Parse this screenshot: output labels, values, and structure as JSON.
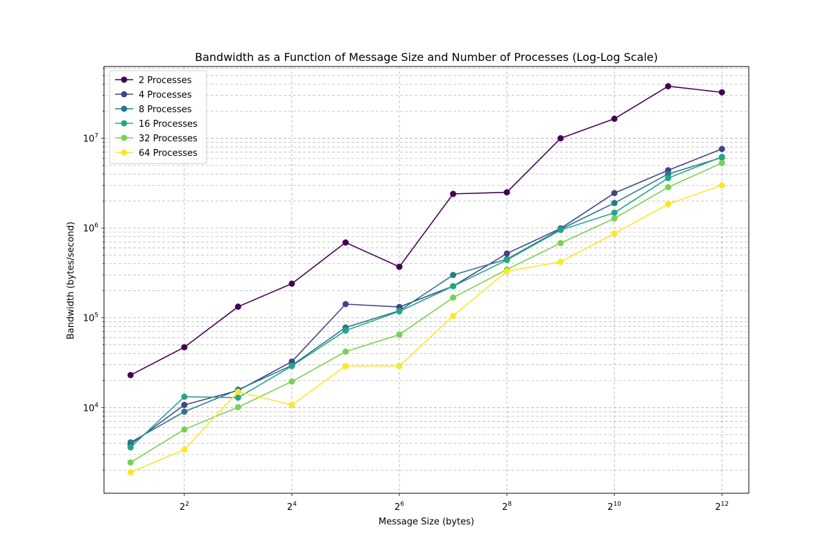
{
  "chart_data": {
    "type": "line",
    "title": "Bandwidth as a Function of Message Size and Number of Processes (Log-Log Scale)",
    "xlabel": "Message Size (bytes)",
    "ylabel": "Bandwidth (bytes/second)",
    "x_scale": "log2",
    "y_scale": "log10",
    "xlim": [
      1.42,
      5793
    ],
    "ylim": [
      1110,
      63000000
    ],
    "x_ticks": [
      {
        "base": "2",
        "exp": "2",
        "value": 4
      },
      {
        "base": "2",
        "exp": "4",
        "value": 16
      },
      {
        "base": "2",
        "exp": "6",
        "value": 64
      },
      {
        "base": "2",
        "exp": "8",
        "value": 256
      },
      {
        "base": "2",
        "exp": "10",
        "value": 1024
      },
      {
        "base": "2",
        "exp": "12",
        "value": 4096
      }
    ],
    "y_ticks": [
      {
        "base": "10",
        "exp": "4",
        "value": 10000
      },
      {
        "base": "10",
        "exp": "5",
        "value": 100000
      },
      {
        "base": "10",
        "exp": "6",
        "value": 1000000
      },
      {
        "base": "10",
        "exp": "7",
        "value": 10000000
      }
    ],
    "grid": true,
    "grid_style": "dashed, major and minor",
    "legend_position": "top-left",
    "x": [
      2,
      4,
      8,
      16,
      32,
      64,
      128,
      256,
      512,
      1024,
      2048,
      4096
    ],
    "series": [
      {
        "name": "2 Processes",
        "color": "#440154",
        "values": [
          23000,
          47000,
          133000,
          240000,
          690000,
          370000,
          2400000,
          2500000,
          10000000,
          16500000,
          38000000,
          32500000
        ]
      },
      {
        "name": "4 Processes",
        "color": "#414487",
        "values": [
          3900,
          10700,
          15500,
          32500,
          142000,
          132000,
          225000,
          520000,
          990000,
          2450000,
          4400000,
          7600000
        ]
      },
      {
        "name": "8 Processes",
        "color": "#2a788e",
        "values": [
          4100,
          9000,
          15800,
          29500,
          78000,
          120000,
          300000,
          450000,
          970000,
          1900000,
          4000000,
          6100000
        ]
      },
      {
        "name": "16 Processes",
        "color": "#22a884",
        "values": [
          3600,
          13200,
          12900,
          29000,
          72000,
          118000,
          225000,
          440000,
          950000,
          1480000,
          3600000,
          6200000
        ]
      },
      {
        "name": "32 Processes",
        "color": "#7ad151",
        "values": [
          2450,
          5700,
          10100,
          19500,
          42000,
          65000,
          168000,
          345000,
          680000,
          1280000,
          2850000,
          5300000
        ]
      },
      {
        "name": "64 Processes",
        "color": "#fde725",
        "values": [
          1900,
          3400,
          15000,
          10700,
          29000,
          29000,
          105000,
          330000,
          420000,
          870000,
          1850000,
          3000000
        ]
      }
    ]
  }
}
